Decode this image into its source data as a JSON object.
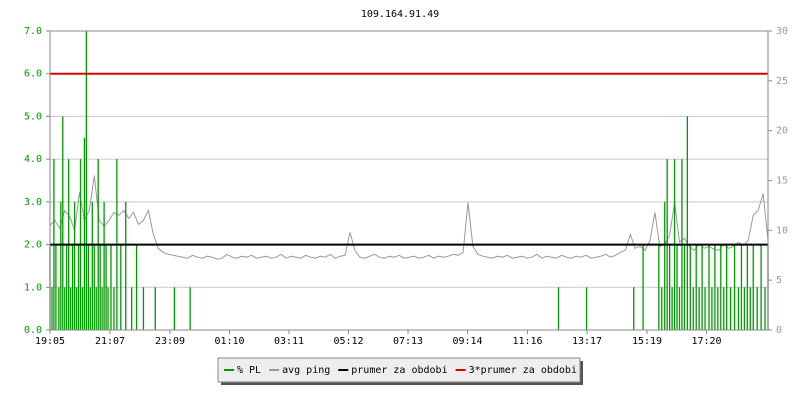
{
  "chart_data": {
    "type": "line",
    "title": "109.164.91.49",
    "xlim": [
      0,
      1460
    ],
    "xticks": [
      {
        "value": 0,
        "label": "19:05"
      },
      {
        "value": 122,
        "label": "21:07"
      },
      {
        "value": 244,
        "label": "23:09"
      },
      {
        "value": 365,
        "label": "01:10"
      },
      {
        "value": 486,
        "label": "03:11"
      },
      {
        "value": 607,
        "label": "05:12"
      },
      {
        "value": 728,
        "label": "07:13"
      },
      {
        "value": 849,
        "label": "09:14"
      },
      {
        "value": 971,
        "label": "11:16"
      },
      {
        "value": 1092,
        "label": "13:17"
      },
      {
        "value": 1214,
        "label": "15:19"
      },
      {
        "value": 1335,
        "label": "17:20"
      }
    ],
    "ylim": [
      0,
      7
    ],
    "yticks": [
      {
        "value": 0,
        "label": "0.0"
      },
      {
        "value": 1,
        "label": "1.0"
      },
      {
        "value": 2,
        "label": "2.0"
      },
      {
        "value": 3,
        "label": "3.0"
      },
      {
        "value": 4,
        "label": "4.0"
      },
      {
        "value": 5,
        "label": "5.0"
      },
      {
        "value": 6,
        "label": "6.0"
      },
      {
        "value": 7,
        "label": "7.0"
      }
    ],
    "y2lim": [
      0,
      30
    ],
    "y2ticks": [
      0,
      5,
      10,
      15,
      20,
      25,
      30
    ],
    "grid": true,
    "series": [
      {
        "name": "% PL",
        "color": "#009900",
        "style": "spikes",
        "x": [
          0,
          4,
          8,
          12,
          18,
          22,
          26,
          30,
          34,
          38,
          42,
          46,
          50,
          54,
          58,
          62,
          66,
          70,
          74,
          78,
          82,
          86,
          90,
          94,
          98,
          102,
          106,
          110,
          114,
          118,
          124,
          130,
          136,
          144,
          154,
          166,
          176,
          190,
          214,
          253,
          285,
          1034,
          1091,
          1187,
          1206,
          1238,
          1244,
          1250,
          1255,
          1260,
          1265,
          1270,
          1275,
          1280,
          1285,
          1290,
          1296,
          1302,
          1308,
          1314,
          1320,
          1326,
          1332,
          1340,
          1346,
          1352,
          1358,
          1364,
          1370,
          1376,
          1384,
          1392,
          1400,
          1406,
          1412,
          1418,
          1424,
          1430,
          1438,
          1446,
          1454,
          1460
        ],
        "values": [
          2,
          1,
          4,
          2,
          1,
          3,
          5,
          1,
          2,
          4,
          1,
          2,
          3,
          1,
          2,
          4,
          1,
          4.5,
          7,
          2,
          1,
          3,
          2,
          1,
          4,
          2,
          1,
          3,
          2,
          1,
          2,
          1,
          4,
          2,
          3,
          1,
          2,
          1,
          1,
          1,
          1,
          1,
          1,
          1,
          2,
          2,
          1,
          3,
          4,
          2,
          1,
          4,
          2,
          1,
          4,
          2,
          5,
          2,
          1,
          2,
          1,
          2,
          1,
          2,
          1,
          2,
          1,
          2,
          1,
          2,
          1,
          2,
          1,
          2,
          1,
          2,
          1,
          2,
          1,
          2,
          1,
          2
        ]
      },
      {
        "name": "avg ping",
        "color": "#999999",
        "style": "line",
        "axis": "y2",
        "x": [
          0,
          10,
          20,
          30,
          40,
          50,
          60,
          70,
          80,
          90,
          100,
          110,
          120,
          130,
          140,
          150,
          160,
          170,
          180,
          190,
          200,
          210,
          220,
          230,
          240,
          250,
          260,
          270,
          280,
          290,
          300,
          310,
          320,
          330,
          340,
          350,
          360,
          370,
          380,
          390,
          400,
          410,
          420,
          430,
          440,
          450,
          460,
          470,
          480,
          490,
          500,
          510,
          520,
          530,
          540,
          550,
          560,
          570,
          580,
          590,
          600,
          610,
          620,
          630,
          640,
          650,
          660,
          670,
          680,
          690,
          700,
          710,
          720,
          730,
          740,
          750,
          760,
          770,
          780,
          790,
          800,
          810,
          820,
          830,
          840,
          850,
          860,
          870,
          880,
          890,
          900,
          910,
          920,
          930,
          940,
          950,
          960,
          970,
          980,
          990,
          1000,
          1010,
          1020,
          1030,
          1040,
          1050,
          1060,
          1070,
          1080,
          1090,
          1100,
          1110,
          1120,
          1130,
          1140,
          1150,
          1160,
          1170,
          1180,
          1190,
          1200,
          1210,
          1220,
          1230,
          1240,
          1250,
          1260,
          1270,
          1280,
          1290,
          1300,
          1310,
          1320,
          1330,
          1340,
          1350,
          1360,
          1370,
          1380,
          1390,
          1400,
          1410,
          1420,
          1430,
          1440,
          1450,
          1460
        ],
        "values": [
          10.5,
          11,
          10.2,
          12,
          11.4,
          10,
          13.8,
          11,
          12,
          15.5,
          11,
          10.4,
          11,
          11.8,
          11.5,
          12,
          11.2,
          11.8,
          10.6,
          11,
          12,
          9.6,
          8.2,
          7.8,
          7.6,
          7.5,
          7.4,
          7.3,
          7.2,
          7.5,
          7.3,
          7.2,
          7.4,
          7.3,
          7.1,
          7.2,
          7.6,
          7.3,
          7.2,
          7.4,
          7.3,
          7.5,
          7.2,
          7.3,
          7.4,
          7.2,
          7.3,
          7.6,
          7.2,
          7.4,
          7.3,
          7.2,
          7.5,
          7.3,
          7.2,
          7.4,
          7.3,
          7.6,
          7.2,
          7.4,
          7.5,
          9.8,
          8.0,
          7.3,
          7.2,
          7.4,
          7.6,
          7.3,
          7.2,
          7.4,
          7.3,
          7.5,
          7.2,
          7.3,
          7.4,
          7.2,
          7.3,
          7.5,
          7.2,
          7.4,
          7.3,
          7.4,
          7.6,
          7.5,
          7.8,
          12.8,
          8.4,
          7.6,
          7.4,
          7.3,
          7.2,
          7.4,
          7.3,
          7.5,
          7.2,
          7.3,
          7.4,
          7.2,
          7.3,
          7.6,
          7.2,
          7.4,
          7.3,
          7.2,
          7.5,
          7.3,
          7.2,
          7.4,
          7.3,
          7.5,
          7.2,
          7.3,
          7.4,
          7.6,
          7.3,
          7.5,
          7.8,
          8.0,
          9.6,
          8.2,
          8.4,
          8.0,
          9.0,
          11.8,
          8.4,
          8.6,
          9.5,
          12.8,
          8.8,
          9.2,
          8.4,
          8.0,
          8.6,
          8.2,
          8.4,
          8.1,
          8.0,
          8.6,
          8.2,
          8.4,
          8.8,
          8.5,
          9.0,
          11.5,
          12.0,
          13.7,
          9.0
        ]
      },
      {
        "name": "prumer za obdobi",
        "color": "#000000",
        "style": "hline",
        "value": 2.0
      },
      {
        "name": "3*prumer za obdobi",
        "color": "#dd0000",
        "style": "hline",
        "value": 6.0
      }
    ]
  }
}
